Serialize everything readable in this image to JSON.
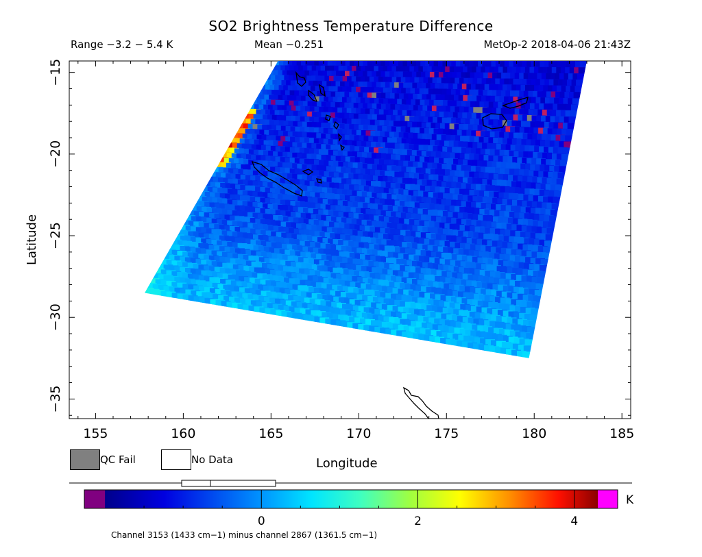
{
  "header": {
    "title": "SO2 Brightness Temperature Difference",
    "range": "Range −3.2 − 5.4 K",
    "mean": "Mean −0.251",
    "satellite": "MetOp-2 2018-04-06 21:43Z"
  },
  "legend": {
    "qc_fail_label": "QC Fail",
    "no_data_label": "No Data",
    "qc_fail_color": "#808080",
    "no_data_color": "#ffffff"
  },
  "colorbar": {
    "unit": "K",
    "ticks": [
      0,
      2,
      4
    ],
    "tick_labels": [
      "0",
      "2",
      "4"
    ],
    "range": [
      -2.0,
      4.3
    ],
    "underflow_color": "#800080",
    "overflow_color": "#ff00ff",
    "note": "Channel 3153 (1433 cm−1) minus channel 2867 (1361.5 cm−1)"
  },
  "chart_data": {
    "type": "heatmap",
    "title": "SO2 Brightness Temperature Difference",
    "xlabel": "Longitude",
    "ylabel": "Latitude",
    "xlim": [
      153.5,
      185.5
    ],
    "ylim": [
      -36.2,
      -14.3
    ],
    "xticks": [
      155,
      160,
      165,
      170,
      175,
      180,
      185
    ],
    "yticks": [
      -15,
      -20,
      -25,
      -30,
      -35
    ],
    "xtick_labels": [
      "155",
      "160",
      "165",
      "170",
      "175",
      "180",
      "185"
    ],
    "ytick_labels": [
      "−15",
      "−20",
      "−25",
      "−30",
      "−35"
    ],
    "value_range": [
      -3.2,
      5.4
    ],
    "mean": -0.251,
    "swath_corners": [
      [
        165.4,
        -14.3
      ],
      [
        183.0,
        -14.3
      ],
      [
        179.7,
        -32.5
      ],
      [
        157.8,
        -28.5
      ]
    ],
    "description_values": {
      "swath_center": -0.6,
      "south_band": 0.8,
      "west_edge_hot": 3.8
    }
  }
}
